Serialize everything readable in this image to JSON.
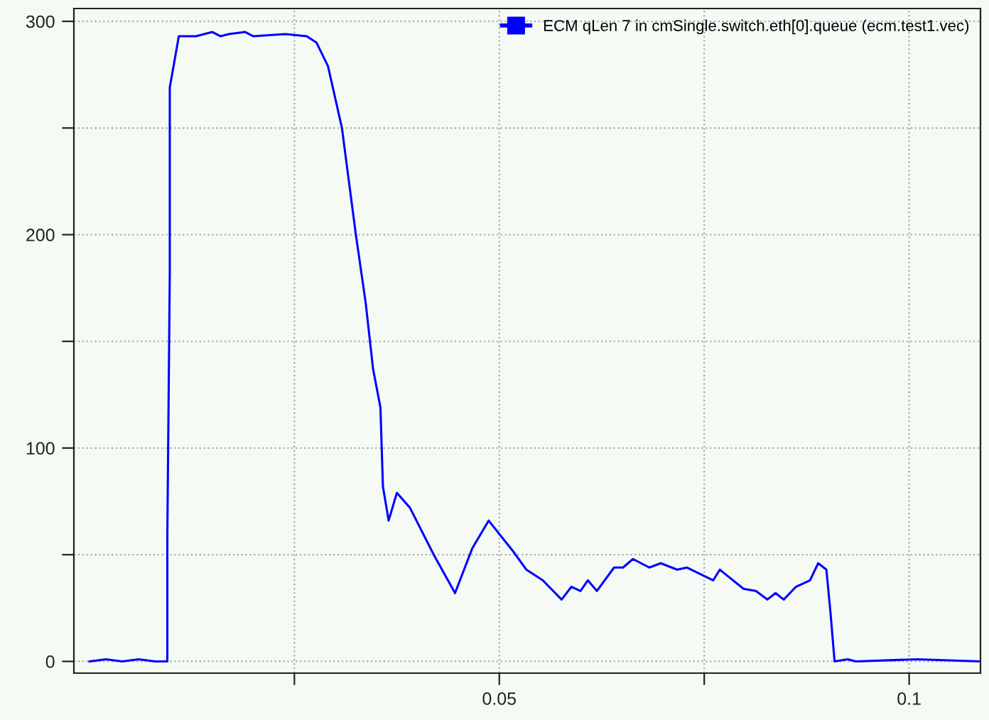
{
  "chart_data": {
    "type": "line",
    "x": [
      0.0,
      0.002,
      0.004,
      0.006,
      0.008,
      0.0095,
      0.0095,
      0.0098,
      0.0098,
      0.0109,
      0.013,
      0.015,
      0.016,
      0.017,
      0.019,
      0.02,
      0.0239,
      0.0265,
      0.0277,
      0.0291,
      0.0308,
      0.0325,
      0.0337,
      0.0346,
      0.0355,
      0.0358,
      0.0365,
      0.0375,
      0.0391,
      0.042,
      0.0446,
      0.0467,
      0.0487,
      0.0516,
      0.0533,
      0.0553,
      0.0576,
      0.0588,
      0.0599,
      0.0608,
      0.0619,
      0.064,
      0.0651,
      0.0663,
      0.0683,
      0.0697,
      0.0717,
      0.0729,
      0.0761,
      0.0769,
      0.0798,
      0.0813,
      0.0827,
      0.0837,
      0.0847,
      0.0862,
      0.0879,
      0.0889,
      0.0899,
      0.0904,
      0.0909,
      0.0925,
      0.0935,
      0.101,
      0.1087
    ],
    "series": [
      {
        "name": "ECM qLen 7 in cmSingle.switch.eth[0].queue (ecm.test1.vec)",
        "color": "#0000ff",
        "values": [
          0,
          1,
          0,
          1,
          0,
          0,
          59,
          182,
          269,
          293,
          293,
          295,
          293,
          294,
          295,
          293,
          294,
          293,
          290,
          279,
          250,
          200,
          168,
          137,
          119,
          82,
          66,
          79,
          72,
          50,
          32,
          53,
          66,
          52,
          43,
          38,
          29,
          35,
          33,
          38,
          33,
          44,
          44,
          48,
          44,
          46,
          43,
          44,
          38,
          43,
          34,
          33,
          29,
          32,
          29,
          35,
          38,
          46,
          43,
          23,
          0,
          1,
          0,
          1,
          0
        ]
      }
    ],
    "xlim": [
      -0.0019,
      0.1087
    ],
    "ylim": [
      -5.5,
      306
    ],
    "xticks": [
      {
        "value": 0.025,
        "label": null
      },
      0.05,
      {
        "value": 0.075,
        "label": null
      },
      0.1
    ],
    "yticks": [
      0,
      {
        "value": 50,
        "label": null
      },
      100,
      {
        "value": 150,
        "label": null
      },
      200,
      {
        "value": 250,
        "label": null
      },
      300
    ],
    "grid": true,
    "legend": "top right",
    "line_style": "solid",
    "marker": "none"
  }
}
